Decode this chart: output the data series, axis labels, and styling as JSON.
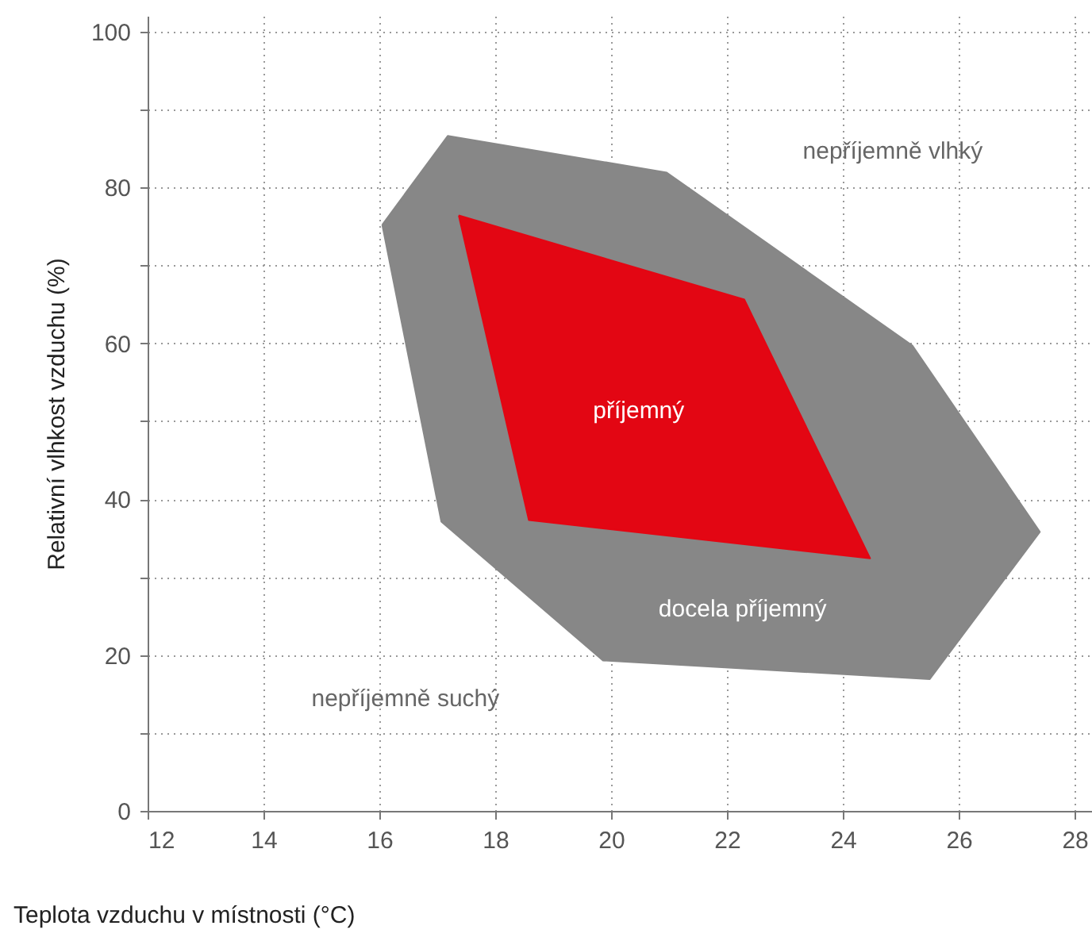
{
  "chart_data": {
    "type": "area",
    "xlabel": "Teplota vzduchu v místnosti (°C)",
    "ylabel": "Relativní vlhkost vzduchu (%)",
    "series": [
      {
        "color": "#878787",
        "x": [
          16.05,
          17.18,
          20.96,
          25.2,
          27.4,
          25.5,
          19.86,
          17.07,
          16.05
        ],
        "values": [
          75.2,
          86.6,
          81.9,
          59.7,
          35.8,
          16.9,
          19.3,
          37.1,
          75.2
        ]
      },
      {
        "color": "#e30613",
        "x": [
          17.37,
          22.3,
          24.47,
          18.58,
          17.37
        ],
        "values": [
          76.4,
          65.6,
          32.4,
          37.3,
          76.4
        ]
      }
    ],
    "annotations": [
      "nepříjemně vlhký",
      "příjemný",
      "docela příjemný",
      "nepříjemně suchý"
    ],
    "xlim": [
      12,
      28.3
    ],
    "xticks": [
      12,
      14,
      16,
      18,
      20,
      22,
      24,
      26,
      28
    ],
    "ylim": [
      0,
      102
    ],
    "yticks": [
      0,
      {
        "value": 10,
        "label": null
      },
      20,
      {
        "value": 30,
        "label": null
      },
      40,
      {
        "value": 50,
        "label": null
      },
      60,
      {
        "value": 70,
        "label": null
      },
      80,
      {
        "value": 90,
        "label": null
      },
      100
    ],
    "grid": true
  }
}
